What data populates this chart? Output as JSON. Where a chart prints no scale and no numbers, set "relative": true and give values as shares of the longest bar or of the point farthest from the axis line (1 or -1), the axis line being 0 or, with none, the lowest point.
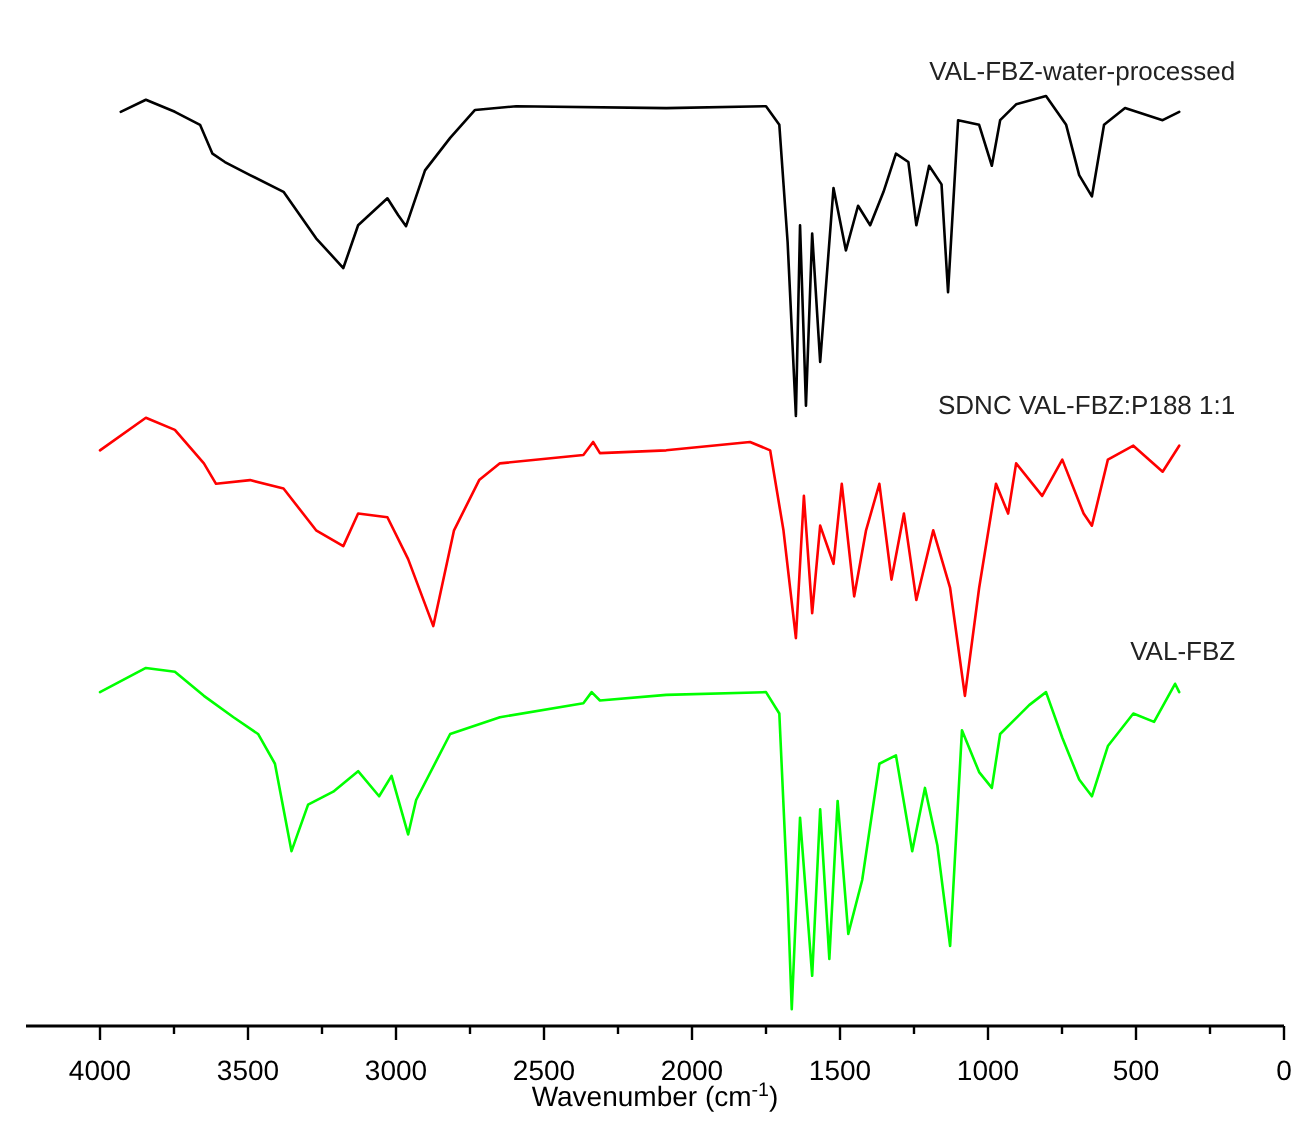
{
  "chart_data": {
    "type": "line",
    "relative": true,
    "xlabel": "Wavenumber (cm$^{-1}$)",
    "xlim": [
      4250,
      0
    ],
    "xticks": [
      4000,
      {
        "value": 3750,
        "label": null
      },
      3500,
      {
        "value": 3250,
        "label": null
      },
      3000,
      {
        "value": 2750,
        "label": null
      },
      2500,
      {
        "value": 2250,
        "label": null
      },
      2000,
      {
        "value": 1750,
        "label": null
      },
      1500,
      {
        "value": 1250,
        "label": null
      },
      1000,
      {
        "value": 750,
        "label": null
      },
      500,
      {
        "value": 250,
        "label": null
      },
      0
    ],
    "marker": "none",
    "line_style": "solid",
    "grid": false,
    "series": [
      {
        "name": "VAL-FBZ-water-processed",
        "color": "#000000",
        "x": [
          3930,
          3845,
          3747,
          3662,
          3620,
          3578,
          3493,
          3380,
          3270,
          3178,
          3128,
          3029,
          2993,
          2966,
          2902,
          2817,
          2733,
          2594,
          2087,
          1750,
          1705,
          1677,
          1649,
          1635,
          1615,
          1594,
          1567,
          1522,
          1480,
          1439,
          1398,
          1353,
          1311,
          1269,
          1242,
          1199,
          1157,
          1135,
          1101,
          1030,
          987,
          959,
          905,
          804,
          736,
          692,
          649,
          608,
          537,
          410,
          354
        ],
        "values": [
          0.983,
          0.996,
          0.983,
          0.969,
          0.938,
          0.929,
          0.915,
          0.897,
          0.847,
          0.815,
          0.861,
          0.89,
          0.872,
          0.86,
          0.92,
          0.955,
          0.985,
          0.989,
          0.987,
          0.989,
          0.969,
          0.843,
          0.656,
          0.861,
          0.667,
          0.852,
          0.714,
          0.901,
          0.834,
          0.882,
          0.861,
          0.897,
          0.938,
          0.929,
          0.861,
          0.925,
          0.905,
          0.789,
          0.974,
          0.969,
          0.925,
          0.974,
          0.991,
          1.0,
          0.969,
          0.915,
          0.892,
          0.969,
          0.987,
          0.974,
          0.983
        ]
      },
      {
        "name": "SDNC VAL-FBZ:P188 1:1",
        "color": "#ff0000",
        "x": [
          4000,
          3845,
          3747,
          3649,
          3608,
          3493,
          3380,
          3270,
          3178,
          3128,
          3029,
          2959,
          2874,
          2804,
          2719,
          2649,
          2367,
          2334,
          2311,
          2087,
          1804,
          1736,
          1691,
          1649,
          1622,
          1594,
          1567,
          1522,
          1494,
          1452,
          1412,
          1367,
          1326,
          1284,
          1242,
          1185,
          1128,
          1078,
          1030,
          973,
          932,
          905,
          817,
          749,
          677,
          649,
          595,
          509,
          410,
          354
        ],
        "values": [
          0.619,
          0.654,
          0.641,
          0.605,
          0.583,
          0.587,
          0.578,
          0.533,
          0.516,
          0.551,
          0.547,
          0.502,
          0.43,
          0.533,
          0.587,
          0.605,
          0.614,
          0.628,
          0.616,
          0.619,
          0.628,
          0.619,
          0.533,
          0.417,
          0.57,
          0.444,
          0.538,
          0.497,
          0.583,
          0.462,
          0.533,
          0.583,
          0.48,
          0.551,
          0.458,
          0.533,
          0.471,
          0.355,
          0.471,
          0.583,
          0.551,
          0.605,
          0.57,
          0.609,
          0.551,
          0.538,
          0.609,
          0.624,
          0.596,
          0.624
        ]
      },
      {
        "name": "VAL-FBZ",
        "color": "#00ff00",
        "x": [
          4000,
          3845,
          3747,
          3649,
          3549,
          3466,
          3409,
          3353,
          3297,
          3212,
          3128,
          3057,
          3015,
          2959,
          2932,
          2817,
          2649,
          2367,
          2339,
          2311,
          2087,
          1750,
          1705,
          1677,
          1663,
          1635,
          1594,
          1567,
          1536,
          1508,
          1472,
          1425,
          1367,
          1311,
          1256,
          1213,
          1171,
          1128,
          1088,
          1030,
          987,
          959,
          861,
          804,
          749,
          692,
          649,
          595,
          509,
          439,
          368,
          354
        ],
        "values": [
          0.359,
          0.385,
          0.381,
          0.355,
          0.332,
          0.314,
          0.282,
          0.188,
          0.238,
          0.252,
          0.274,
          0.247,
          0.269,
          0.206,
          0.243,
          0.314,
          0.332,
          0.347,
          0.359,
          0.35,
          0.356,
          0.359,
          0.336,
          0.14,
          0.018,
          0.224,
          0.054,
          0.233,
          0.072,
          0.242,
          0.099,
          0.157,
          0.282,
          0.291,
          0.188,
          0.256,
          0.194,
          0.086,
          0.318,
          0.273,
          0.256,
          0.314,
          0.345,
          0.359,
          0.31,
          0.265,
          0.247,
          0.301,
          0.336,
          0.327,
          0.368,
          0.359
        ]
      }
    ]
  }
}
